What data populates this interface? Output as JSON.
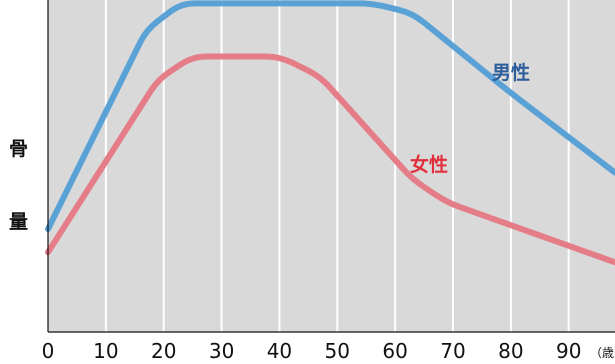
{
  "chart_data": {
    "type": "line",
    "title": "",
    "ylabel_chars": [
      "骨",
      "量"
    ],
    "x_ticks": [
      0,
      10,
      20,
      30,
      40,
      50,
      60,
      70,
      80,
      90
    ],
    "x_unit": "（歳）",
    "xlim": [
      0,
      98
    ],
    "ylim": [
      0,
      100
    ],
    "grid": true,
    "background": "#d9d9d9",
    "series": [
      {
        "name": "男性",
        "color": "#5aa2d6",
        "label_color": "#2c5d9c",
        "points": [
          [
            0,
            31
          ],
          [
            17,
            91
          ],
          [
            23,
            99
          ],
          [
            56,
            99
          ],
          [
            63,
            96
          ],
          [
            80,
            72
          ],
          [
            98,
            48
          ]
        ]
      },
      {
        "name": "女性",
        "color": "#e57d88",
        "label_color": "#e0303c",
        "points": [
          [
            0,
            24
          ],
          [
            19,
            76
          ],
          [
            25,
            83
          ],
          [
            40,
            83
          ],
          [
            47,
            77
          ],
          [
            63,
            46
          ],
          [
            69,
            39
          ],
          [
            98,
            21
          ]
        ]
      }
    ]
  }
}
